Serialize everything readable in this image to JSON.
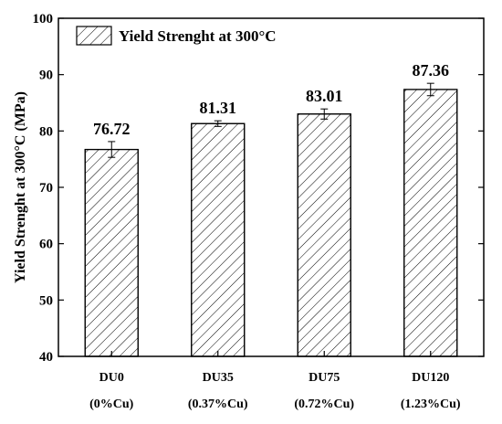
{
  "chart_data": {
    "type": "bar",
    "categories": [
      "DU0",
      "DU35",
      "DU75",
      "DU120"
    ],
    "category_sublabels": [
      "(0%Cu)",
      "(0.37%Cu)",
      "(0.72%Cu)",
      "(1.23%Cu)"
    ],
    "series": [
      {
        "name": "Yield Strenght at 300°C",
        "values": [
          76.72,
          81.31,
          83.01,
          87.36
        ],
        "errors": [
          1.4,
          0.5,
          0.9,
          1.1
        ]
      }
    ],
    "data_labels": [
      "76.72",
      "81.31",
      "83.01",
      "87.36"
    ],
    "ylabel": "Yield Strenght at 300°C (MPa)",
    "xlabel": "",
    "ylim": [
      40,
      100
    ],
    "yticks": [
      40,
      50,
      60,
      70,
      80,
      90,
      100
    ],
    "grid": false,
    "legend_position": "top-left",
    "bar_fill": "hatched",
    "colors": {
      "bar_stroke": "#000000",
      "hatch": "#000000",
      "background": "#ffffff"
    }
  }
}
